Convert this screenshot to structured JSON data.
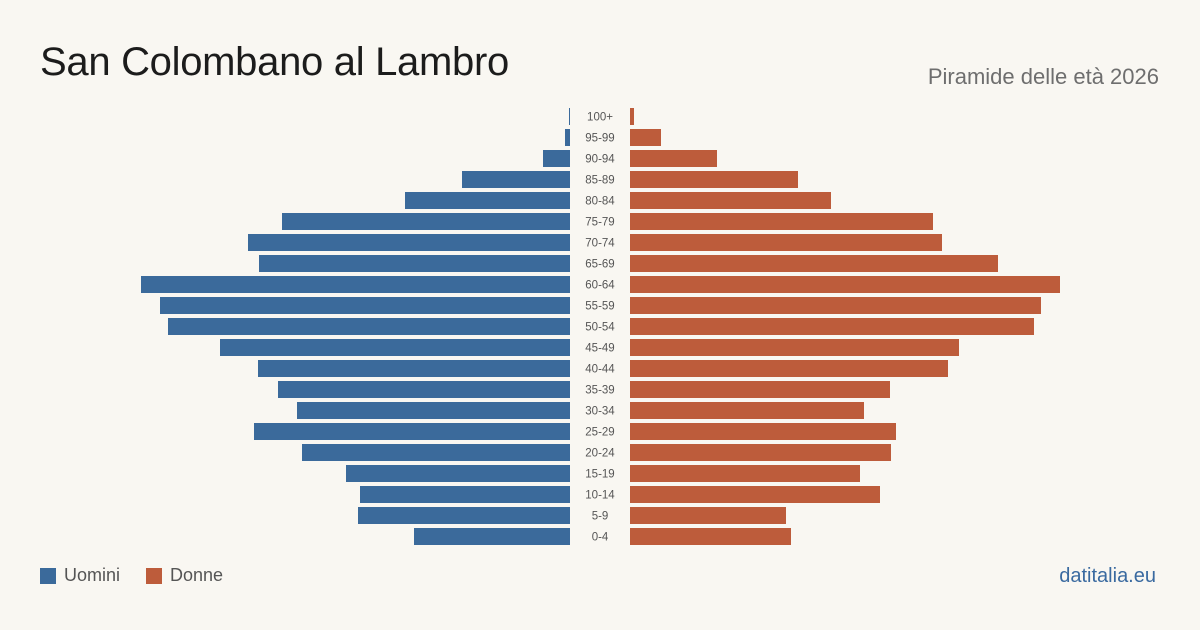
{
  "header": {
    "title": "San Colombano al Lambro",
    "subtitle": "Piramide delle età 2026"
  },
  "legend": {
    "men_label": "Uomini",
    "women_label": "Donne"
  },
  "brand": "datitalia.eu",
  "colors": {
    "men": "#3b6a9b",
    "women": "#bd5c3b",
    "background": "#f9f7f2"
  },
  "chart_data": {
    "type": "bar",
    "subtype": "population-pyramid",
    "title": "",
    "categories": [
      "100+",
      "95-99",
      "90-94",
      "85-89",
      "80-84",
      "75-79",
      "70-74",
      "65-69",
      "60-64",
      "55-59",
      "50-54",
      "45-49",
      "40-44",
      "35-39",
      "30-34",
      "25-29",
      "20-24",
      "15-19",
      "10-14",
      "5-9",
      "0-4"
    ],
    "series": [
      {
        "name": "Uomini",
        "values": [
          1,
          5,
          27,
          108,
          165,
          288,
          322,
          311,
          429,
          410,
          402,
          350,
          312,
          292,
          273,
          316,
          268,
          224,
          210,
          212,
          156
        ]
      },
      {
        "name": "Donne",
        "values": [
          4,
          31,
          87,
          168,
          201,
          303,
          312,
          368,
          430,
          411,
          404,
          329,
          318,
          260,
          234,
          266,
          261,
          230,
          250,
          156,
          161
        ]
      }
    ],
    "xlabel": "",
    "ylabel": "",
    "grid": false,
    "legend_position": "bottom-left"
  }
}
